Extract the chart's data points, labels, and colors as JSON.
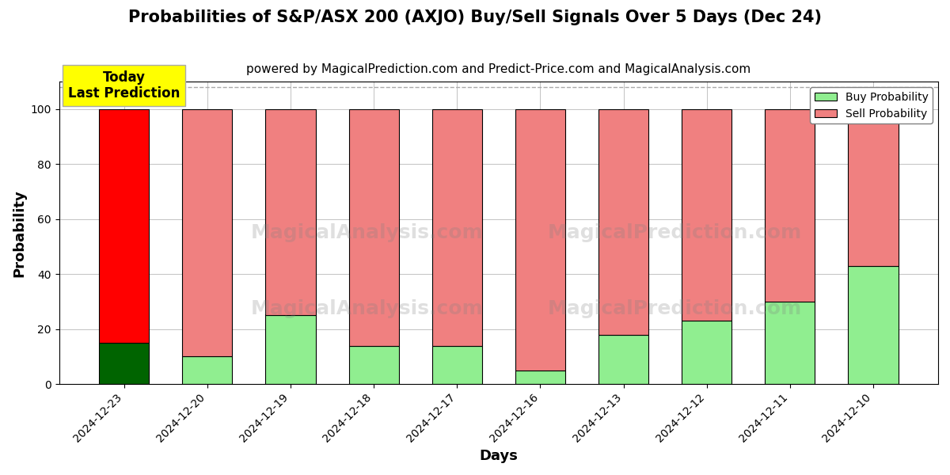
{
  "title": "Probabilities of S&P/ASX 200 (AXJO) Buy/Sell Signals Over 5 Days (Dec 24)",
  "subtitle": "powered by MagicalPrediction.com and Predict-Price.com and MagicalAnalysis.com",
  "xlabel": "Days",
  "ylabel": "Probability",
  "watermark": "MagicalAnalysis.com   MagicalPrediction.com",
  "categories": [
    "2024-12-23",
    "2024-12-20",
    "2024-12-19",
    "2024-12-18",
    "2024-12-17",
    "2024-12-16",
    "2024-12-13",
    "2024-12-12",
    "2024-12-11",
    "2024-12-10"
  ],
  "buy_values": [
    15,
    10,
    25,
    14,
    14,
    5,
    18,
    23,
    30,
    43
  ],
  "sell_values": [
    85,
    90,
    75,
    86,
    86,
    95,
    82,
    77,
    70,
    57
  ],
  "today_bar_buy_color": "#006400",
  "today_bar_sell_color": "#FF0000",
  "other_bar_buy_color": "#90EE90",
  "other_bar_sell_color": "#F08080",
  "legend_buy_color": "#90EE90",
  "legend_sell_color": "#F08080",
  "today_box_color": "#FFFF00",
  "today_box_text": "Today\nLast Prediction",
  "ylim": [
    0,
    110
  ],
  "dashed_line_y": 108,
  "bar_edge_color": "#000000",
  "bar_linewidth": 0.8,
  "grid_color": "#AAAAAA",
  "background_color": "#FFFFFF",
  "title_fontsize": 15,
  "subtitle_fontsize": 11,
  "axis_label_fontsize": 13,
  "tick_fontsize": 10
}
